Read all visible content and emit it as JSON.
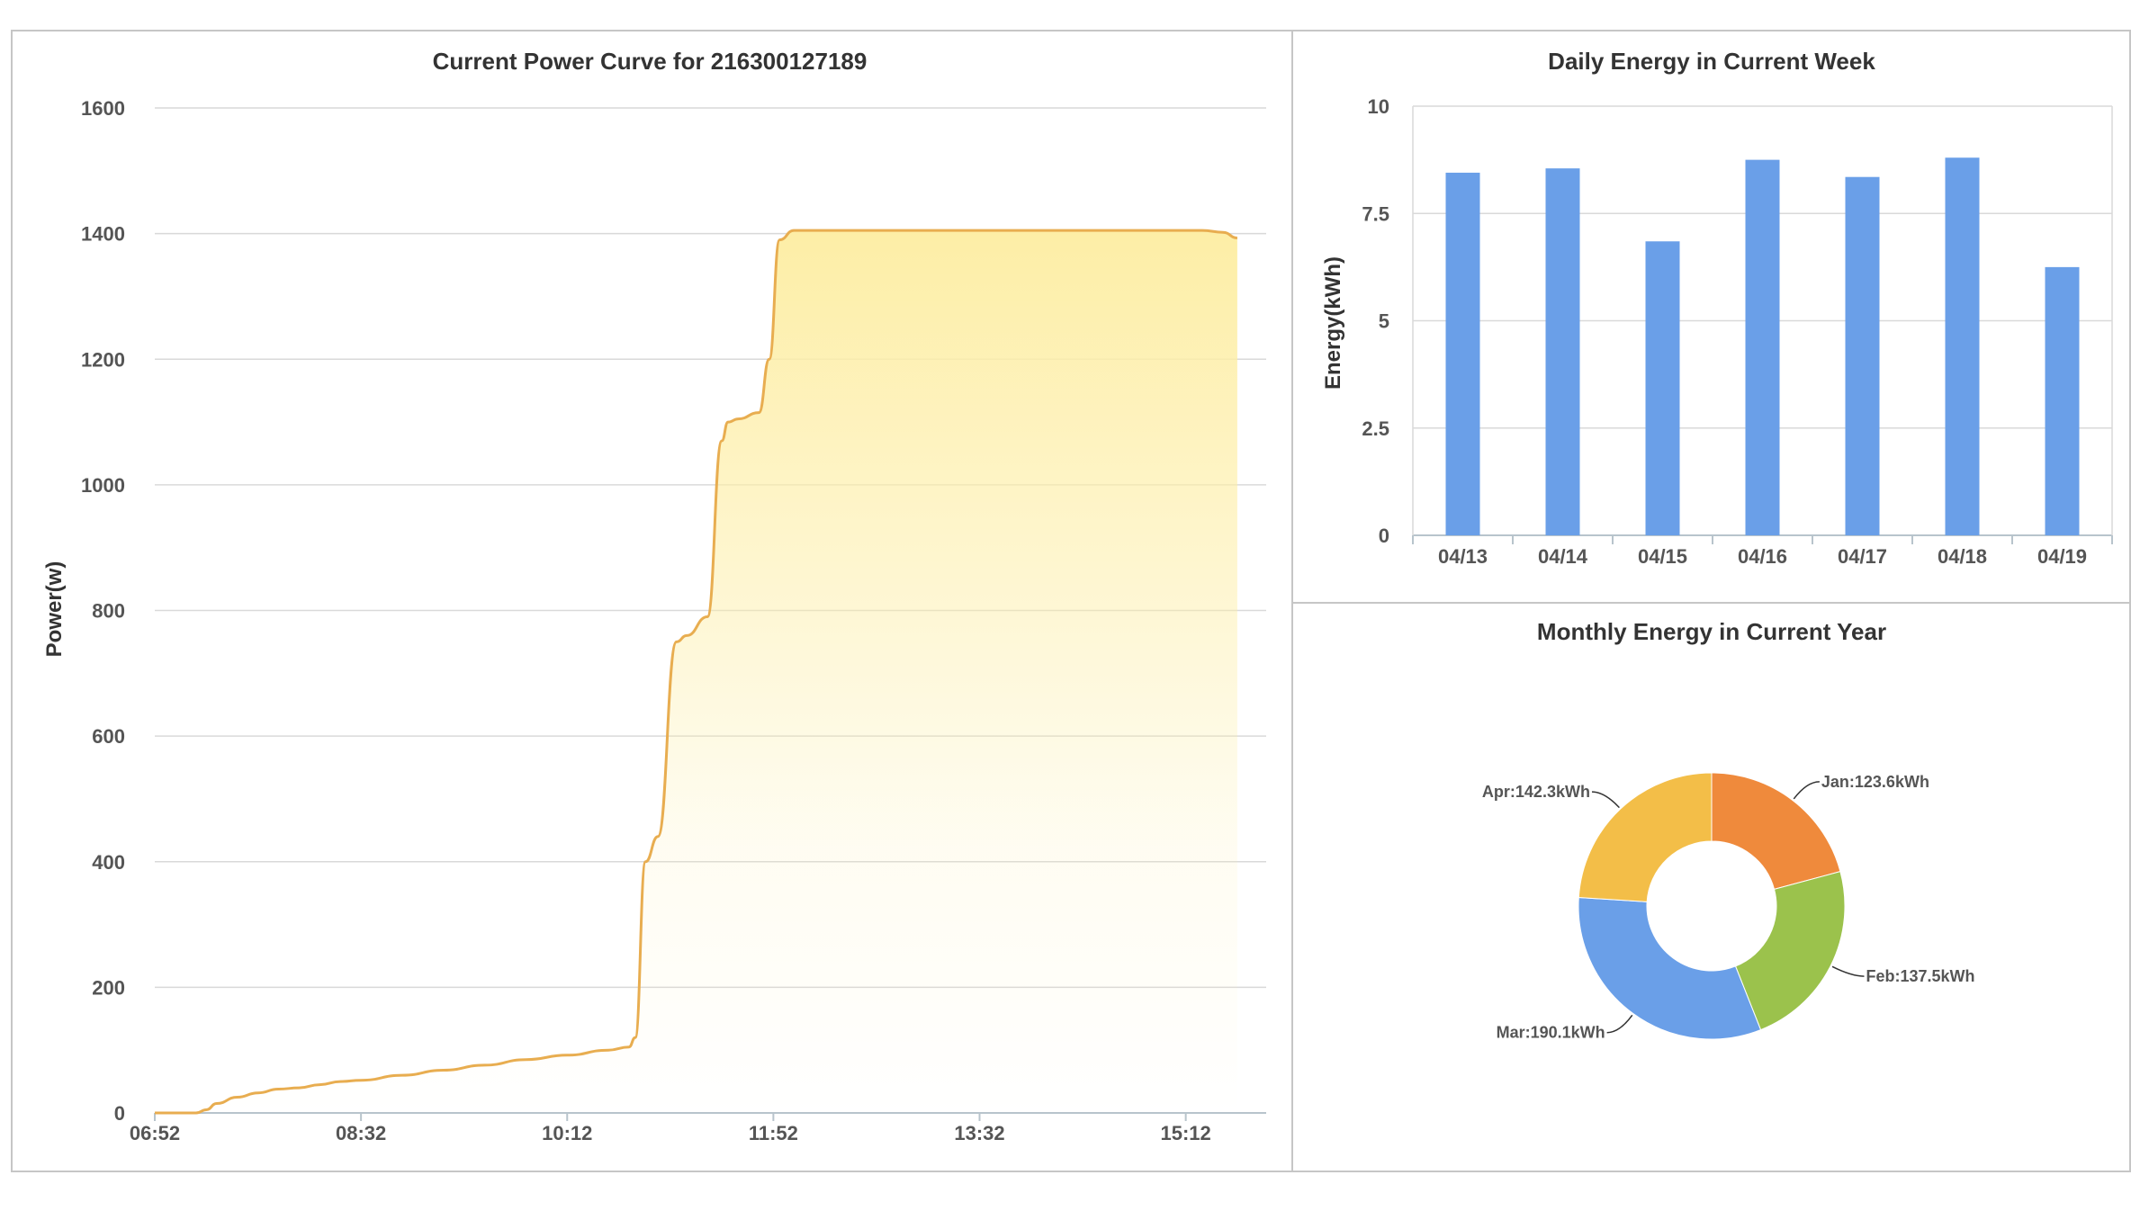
{
  "colors": {
    "line": "#e8ad50",
    "area_top": "#fdeea6",
    "bar": "#6a9fe8",
    "grid": "#d9d9d9",
    "axis": "#b8c4cc"
  },
  "chart_data": [
    {
      "type": "area",
      "title": "Current Power Curve for 216300127189",
      "xlabel": "",
      "ylabel": "Power(w)",
      "ylim": [
        0,
        1600
      ],
      "yticks": [
        "0",
        "200",
        "400",
        "600",
        "800",
        "1000",
        "1200",
        "1400",
        "1600"
      ],
      "xticks": [
        "06:52",
        "08:32",
        "10:12",
        "11:52",
        "13:32",
        "15:12"
      ],
      "x_minutes_range": [
        412,
        951
      ],
      "series": [
        {
          "name": "Power",
          "x": [
            "06:52",
            "07:12",
            "07:17",
            "07:22",
            "07:32",
            "07:42",
            "07:52",
            "08:02",
            "08:12",
            "08:22",
            "08:32",
            "08:52",
            "09:12",
            "09:32",
            "09:52",
            "10:12",
            "10:32",
            "10:42",
            "10:45",
            "10:50",
            "10:56",
            "11:05",
            "11:10",
            "11:20",
            "11:27",
            "11:30",
            "11:35",
            "11:45",
            "11:50",
            "11:55",
            "12:02",
            "12:30",
            "13:00",
            "13:30",
            "14:00",
            "14:30",
            "15:00",
            "15:20",
            "15:30",
            "15:37"
          ],
          "values": [
            0,
            0,
            5,
            15,
            25,
            32,
            38,
            40,
            45,
            50,
            52,
            60,
            68,
            76,
            85,
            92,
            100,
            105,
            120,
            400,
            440,
            750,
            760,
            790,
            1070,
            1100,
            1105,
            1115,
            1200,
            1390,
            1405,
            1405,
            1405,
            1405,
            1405,
            1405,
            1405,
            1405,
            1402,
            1393
          ]
        }
      ]
    },
    {
      "type": "bar",
      "title": "Daily Energy in Current Week",
      "xlabel": "",
      "ylabel": "Energy(kWh)",
      "ylim": [
        0,
        10
      ],
      "yticks": [
        "0",
        "2.5",
        "5",
        "7.5",
        "10"
      ],
      "categories": [
        "04/13",
        "04/14",
        "04/15",
        "04/16",
        "04/17",
        "04/18",
        "04/19"
      ],
      "values": [
        8.45,
        8.55,
        6.85,
        8.75,
        8.35,
        8.8,
        6.25
      ]
    },
    {
      "type": "pie",
      "title": "Monthly Energy in Current Year",
      "unit": "kWh",
      "slices": [
        {
          "label": "Jan",
          "value": 123.6,
          "text": "Jan:123.6kWh",
          "color": "#ef8a3c"
        },
        {
          "label": "Feb",
          "value": 137.5,
          "text": "Feb:137.5kWh",
          "color": "#9bc24c"
        },
        {
          "label": "Mar",
          "value": 190.1,
          "text": "Mar:190.1kWh",
          "color": "#6a9fe8"
        },
        {
          "label": "Apr",
          "value": 142.3,
          "text": "Apr:142.3kWh",
          "color": "#f3be48"
        }
      ]
    }
  ]
}
